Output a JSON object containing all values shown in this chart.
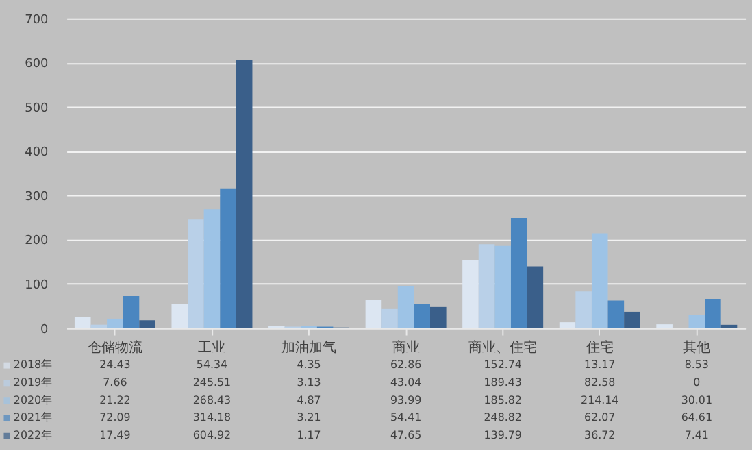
{
  "chart_data": {
    "type": "bar",
    "categories": [
      "仓储物流",
      "工业",
      "加油加气",
      "商业",
      "商业、住宅",
      "住宅",
      "其他"
    ],
    "series": [
      {
        "name": "2018年",
        "color": "#dce6f2",
        "values": [
          24.43,
          54.34,
          4.35,
          62.86,
          152.74,
          13.17,
          8.53
        ]
      },
      {
        "name": "2019年",
        "color": "#b9d0e8",
        "values": [
          7.66,
          245.51,
          3.13,
          43.04,
          189.43,
          82.58,
          0
        ]
      },
      {
        "name": "2020年",
        "color": "#9dc3e6",
        "values": [
          21.22,
          268.43,
          4.87,
          93.99,
          185.82,
          214.14,
          30.01
        ]
      },
      {
        "name": "2021年",
        "color": "#4a86c0",
        "values": [
          72.09,
          314.18,
          3.21,
          54.41,
          248.82,
          62.07,
          64.61
        ]
      },
      {
        "name": "2022年",
        "color": "#3a5f8a",
        "values": [
          17.49,
          604.92,
          1.17,
          47.65,
          139.79,
          36.72,
          7.41
        ]
      }
    ],
    "ylim": [
      0,
      700
    ],
    "yticks": [
      0,
      100,
      200,
      300,
      400,
      500,
      600,
      700
    ],
    "grid": "y",
    "legend": "bottom",
    "data_labels": true
  }
}
